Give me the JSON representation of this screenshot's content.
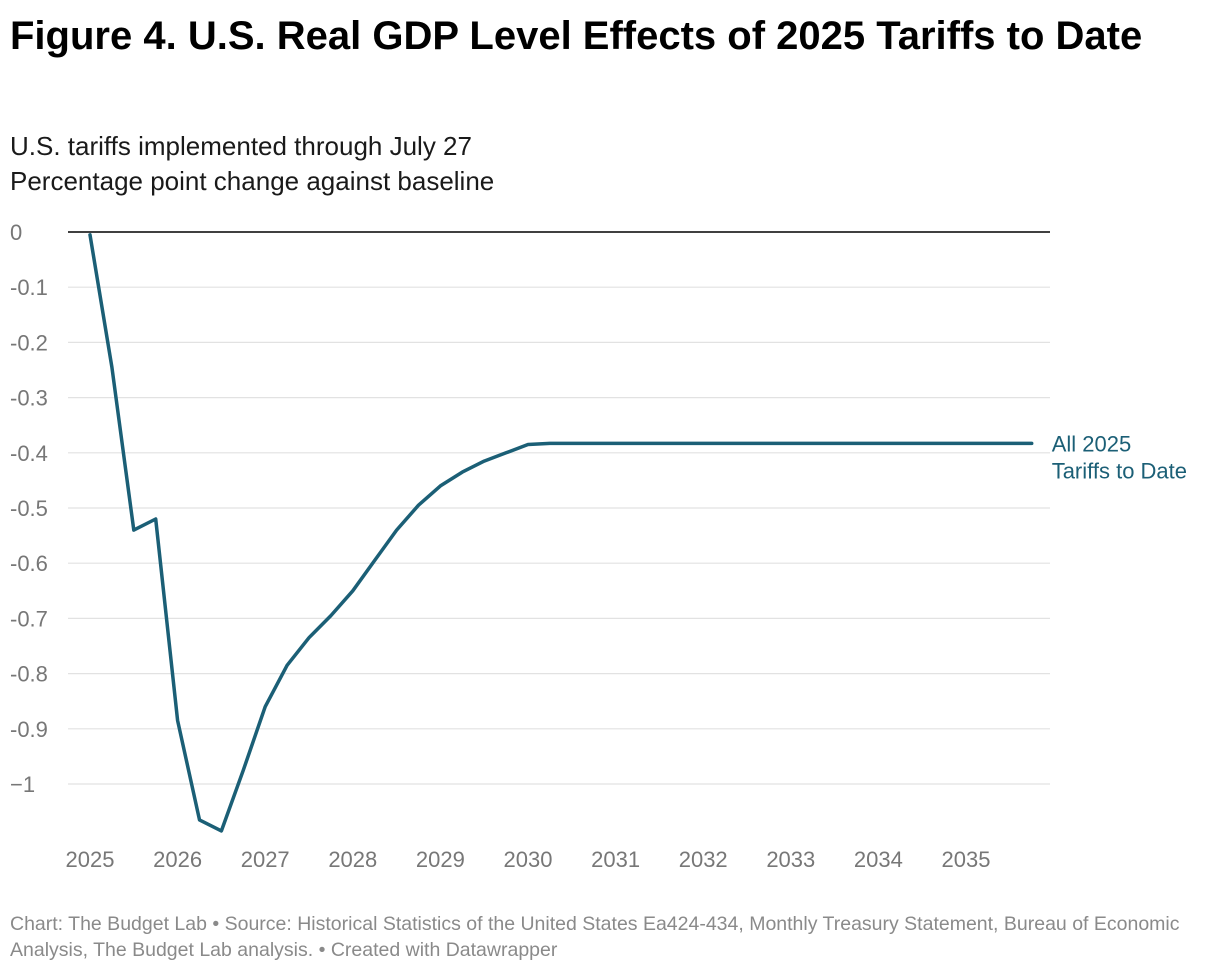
{
  "title": "Figure 4. U.S. Real GDP Level Effects of 2025 Tariffs to Date",
  "subtitle_line1": "U.S. tariffs implemented through July 27",
  "subtitle_line2": "Percentage point change against baseline",
  "footer": "Chart: The Budget Lab • Source: Historical Statistics of the United States Ea424-434, Monthly Treasury Statement, Bureau of Economic Analysis, The Budget Lab analysis.  • Created with Datawrapper",
  "colors": {
    "series": "#1b5f76",
    "grid": "#e2e2e2",
    "zero_line": "#000000",
    "tick_text": "#777777"
  },
  "chart_data": {
    "type": "line",
    "title": "Figure 4. U.S. Real GDP Level Effects of 2025 Tariffs to Date",
    "subtitle": "U.S. tariffs implemented through July 27",
    "ylabel": "Percentage point change against baseline",
    "xlabel": "",
    "xlim": [
      2025,
      2036
    ],
    "ylim": [
      -1.08,
      0
    ],
    "x_ticks": [
      2025,
      2026,
      2027,
      2028,
      2029,
      2030,
      2031,
      2032,
      2033,
      2034,
      2035
    ],
    "x_tick_labels": [
      "2025",
      "2026",
      "2027",
      "2028",
      "2029",
      "2030",
      "2031",
      "2032",
      "2033",
      "2034",
      "2035"
    ],
    "y_ticks": [
      0,
      -0.1,
      -0.2,
      -0.3,
      -0.4,
      -0.5,
      -0.6,
      -0.7,
      -0.8,
      -0.9,
      -1
    ],
    "y_tick_labels": [
      "0",
      "-0.1",
      "-0.2",
      "-0.3",
      "-0.4",
      "-0.5",
      "-0.6",
      "-0.7",
      "-0.8",
      "-0.9",
      "−1"
    ],
    "grid": true,
    "legend": "direct label at right end of line",
    "series": [
      {
        "name": "All 2025 Tariffs to Date",
        "label_lines": [
          "All 2025",
          "Tariffs to Date"
        ],
        "color": "#1b5f76",
        "x": [
          2025.0,
          2025.25,
          2025.5,
          2025.75,
          2026.0,
          2026.25,
          2026.5,
          2026.75,
          2027.0,
          2027.25,
          2027.5,
          2027.75,
          2028.0,
          2028.25,
          2028.5,
          2028.75,
          2029.0,
          2029.25,
          2029.5,
          2029.75,
          2030.0,
          2030.25,
          2030.5,
          2030.75,
          2031.0,
          2032.0,
          2033.0,
          2034.0,
          2035.0,
          2035.75
        ],
        "values": [
          -0.005,
          -0.245,
          -0.54,
          -0.52,
          -0.885,
          -1.065,
          -1.085,
          -0.975,
          -0.86,
          -0.785,
          -0.735,
          -0.695,
          -0.65,
          -0.595,
          -0.54,
          -0.495,
          -0.46,
          -0.435,
          -0.415,
          -0.4,
          -0.385,
          -0.383,
          -0.383,
          -0.383,
          -0.383,
          -0.383,
          -0.383,
          -0.383,
          -0.383,
          -0.383
        ]
      }
    ]
  }
}
